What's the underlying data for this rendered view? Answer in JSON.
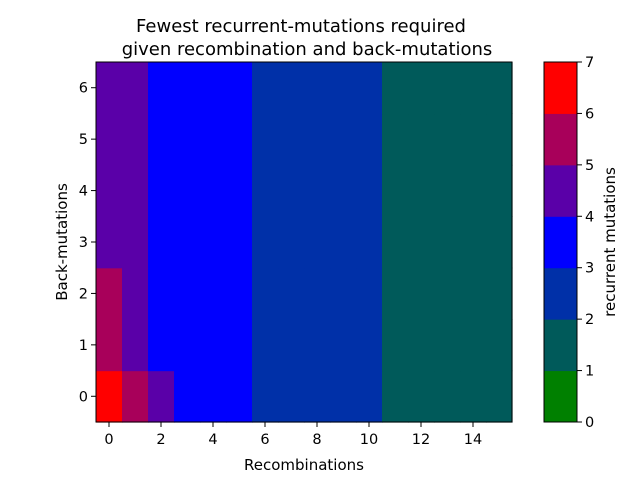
{
  "chart_data": {
    "type": "heatmap",
    "title": "Fewest recurrent-mutations required\ngiven recombination and back-mutations",
    "xlabel": "Recombinations",
    "ylabel": "Back-mutations",
    "x_range": [
      0,
      15
    ],
    "y_range": [
      0,
      6
    ],
    "x_ticks": [
      "0",
      "2",
      "4",
      "6",
      "8",
      "10",
      "12",
      "14"
    ],
    "y_ticks": [
      "0",
      "1",
      "2",
      "3",
      "4",
      "5",
      "6"
    ],
    "matrix": [
      [
        7,
        5,
        4,
        3,
        3,
        3,
        2,
        2,
        2,
        2,
        2,
        1,
        1,
        1,
        1,
        1
      ],
      [
        5,
        4,
        3,
        3,
        3,
        3,
        2,
        2,
        2,
        2,
        2,
        1,
        1,
        1,
        1,
        1
      ],
      [
        5,
        4,
        3,
        3,
        3,
        3,
        2,
        2,
        2,
        2,
        2,
        1,
        1,
        1,
        1,
        1
      ],
      [
        4,
        4,
        3,
        3,
        3,
        3,
        2,
        2,
        2,
        2,
        2,
        1,
        1,
        1,
        1,
        1
      ],
      [
        4,
        4,
        3,
        3,
        3,
        3,
        2,
        2,
        2,
        2,
        2,
        1,
        1,
        1,
        1,
        1
      ],
      [
        4,
        4,
        3,
        3,
        3,
        3,
        2,
        2,
        2,
        2,
        2,
        1,
        1,
        1,
        1,
        1
      ],
      [
        4,
        4,
        3,
        3,
        3,
        3,
        2,
        2,
        2,
        2,
        2,
        1,
        1,
        1,
        1,
        1
      ]
    ],
    "colorbar": {
      "label": "recurrent mutations",
      "ticks": [
        "0",
        "1",
        "2",
        "3",
        "4",
        "5",
        "6",
        "7"
      ],
      "range": [
        0,
        7
      ],
      "colors": [
        "#008000",
        "#005a5a",
        "#0030a8",
        "#0000ff",
        "#5a00a8",
        "#a8005a",
        "#ff0000"
      ]
    }
  }
}
